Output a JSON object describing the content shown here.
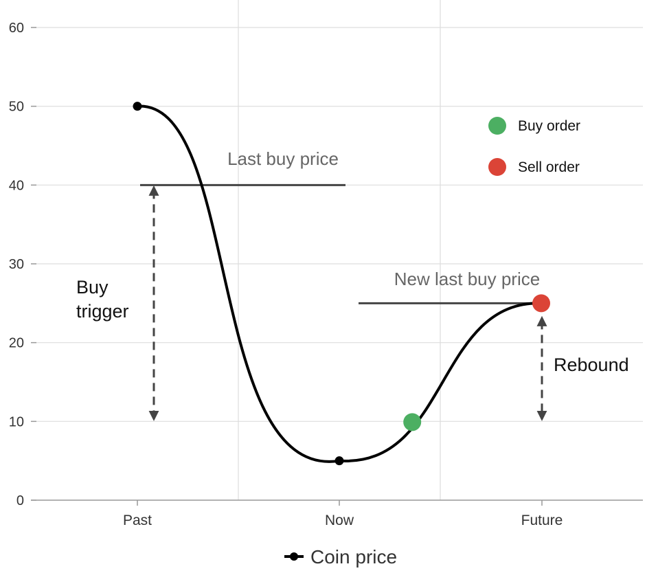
{
  "chart_data": {
    "type": "line",
    "categories": [
      "Past",
      "Now",
      "Future"
    ],
    "y_ticks": [
      0,
      10,
      20,
      30,
      40,
      50,
      60
    ],
    "ylim": [
      0,
      60
    ],
    "grid": true,
    "series": [
      {
        "name": "Coin price",
        "color": "#000000",
        "points": [
          {
            "x": "Past",
            "y": 50
          },
          {
            "x": "Now",
            "y": 5
          },
          {
            "x": "Future",
            "y": 25
          }
        ]
      }
    ],
    "markers": {
      "buy": {
        "x_between": [
          "Now",
          "Future"
        ],
        "position": 0.36,
        "y": 10,
        "color": "#4caf62"
      },
      "sell": {
        "x": "Future",
        "y": 25,
        "color": "#db4437"
      }
    },
    "annotations": {
      "last_buy_price": {
        "text": "Last buy price",
        "y": 40
      },
      "new_last_buy_price": {
        "text": "New last buy price",
        "y": 25
      },
      "buy_trigger": {
        "line1": "Buy",
        "line2": "trigger",
        "from": 40,
        "to": 10
      },
      "rebound": {
        "text": "Rebound",
        "from": 25,
        "to": 10
      }
    },
    "legend": {
      "placement": "top-right",
      "items": [
        {
          "label": "Buy order",
          "color": "#4caf62"
        },
        {
          "label": "Sell order",
          "color": "#db4437"
        }
      ]
    },
    "series_legend": {
      "label": "Coin price",
      "placement": "bottom"
    }
  }
}
